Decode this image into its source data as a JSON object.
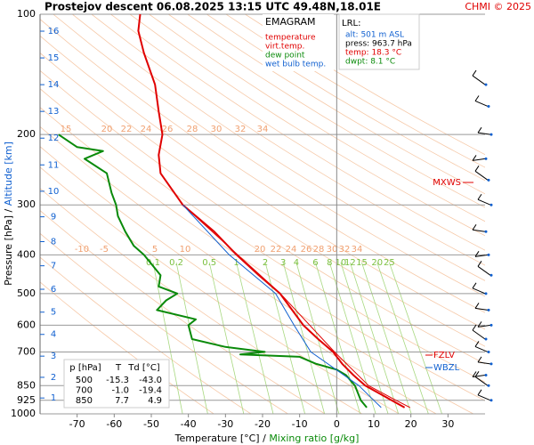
{
  "chart_data": {
    "type": "line",
    "title": "Prostejov   descent   06.08.2025 13:15 UTC  49.48N,18.01E",
    "credit": "CHMI © 2025",
    "x_label": "Temperature [°C]",
    "x_label_separator": "/",
    "x_label_2": "Mixing ratio [g/kg]",
    "y_label": "Pressure [hPa]",
    "y_label_separator": "/",
    "y_label_2": "Altitude [km]",
    "y_log": true,
    "xlim": [
      -80,
      40
    ],
    "xticks": [
      -70,
      -60,
      -50,
      -40,
      -30,
      -20,
      -10,
      0,
      10,
      20,
      30
    ],
    "ylim": [
      1000,
      100
    ],
    "yticks": [
      100,
      200,
      300,
      400,
      500,
      600,
      700,
      850,
      925,
      1000
    ],
    "altitude_ticks": [
      1,
      2,
      3,
      4,
      5,
      6,
      7,
      8,
      9,
      10,
      11,
      12,
      13,
      14,
      15,
      16
    ],
    "mixing_ratios": [
      0.1,
      0.2,
      0.5,
      1,
      2,
      3,
      4,
      6,
      8,
      10,
      12,
      15,
      20,
      25
    ],
    "adiabat_labels_upper": [
      15,
      20,
      22,
      24,
      26,
      28,
      30,
      32,
      34
    ],
    "adiabat_labels_lower": [
      -10,
      -5,
      5,
      10,
      20,
      22,
      24,
      26,
      28,
      30,
      32,
      34
    ],
    "legend_title": "EMAGRAM",
    "series": [
      {
        "name": "temperature",
        "color": "#e00000",
        "pressure": [
          964,
          925,
          850,
          800,
          750,
          700,
          650,
          600,
          550,
          500,
          450,
          400,
          350,
          300,
          250,
          225,
          200,
          175,
          150,
          125,
          110,
          100
        ],
        "values": [
          18.3,
          14.8,
          7.7,
          4.5,
          1.5,
          -1.0,
          -5,
          -9,
          -12,
          -15.3,
          -21,
          -27,
          -33,
          -41.5,
          -47.5,
          -48,
          -47,
          -48,
          -49,
          -52,
          -53.5,
          -53
        ]
      },
      {
        "name": "virt.temp.",
        "color": "#e00000",
        "pressure": [
          964,
          925,
          850,
          700,
          500,
          300
        ],
        "values": [
          19.8,
          16,
          8.6,
          -0.6,
          -15.2,
          -41.5
        ]
      },
      {
        "name": "dew point",
        "color": "#0a8a0a",
        "pressure": [
          964,
          925,
          850,
          800,
          775,
          750,
          720,
          710,
          700,
          680,
          650,
          600,
          580,
          550,
          520,
          500,
          480,
          450,
          400,
          380,
          350,
          320,
          300,
          280,
          250,
          230,
          220,
          215,
          200
        ],
        "values": [
          8.1,
          6.5,
          4.9,
          2.5,
          0,
          -5.5,
          -10,
          -26,
          -19.4,
          -30,
          -39,
          -40,
          -38,
          -48.5,
          -46,
          -43,
          -48,
          -47.5,
          -52,
          -54.7,
          -57,
          -59,
          -59.5,
          -60.7,
          -62,
          -68,
          -63,
          -70,
          -75
        ]
      },
      {
        "name": "wet bulb temp.",
        "color": "#1060d0",
        "pressure": [
          964,
          925,
          850,
          700,
          600,
          500,
          400,
          300
        ],
        "values": [
          12,
          10,
          6,
          -7,
          -11.5,
          -16.5,
          -29,
          -41.5
        ]
      }
    ],
    "lrl": {
      "title": "LRL:",
      "lines": [
        "alt: 501 m ASL",
        "press: 963.7 hPa",
        "temp: 18.3 °C",
        "dwpt: 8.1 °C"
      ]
    },
    "levels": [
      "MXWS",
      "FZLV",
      "WBZL"
    ],
    "summary_table": {
      "header": [
        "p [hPa]",
        "T",
        "Td [°C]"
      ],
      "rows": [
        [
          "500",
          "-15.3",
          "-43.0"
        ],
        [
          "700",
          "-1.0",
          "-19.4"
        ],
        [
          "850",
          "7.7",
          "4.9"
        ]
      ]
    }
  }
}
